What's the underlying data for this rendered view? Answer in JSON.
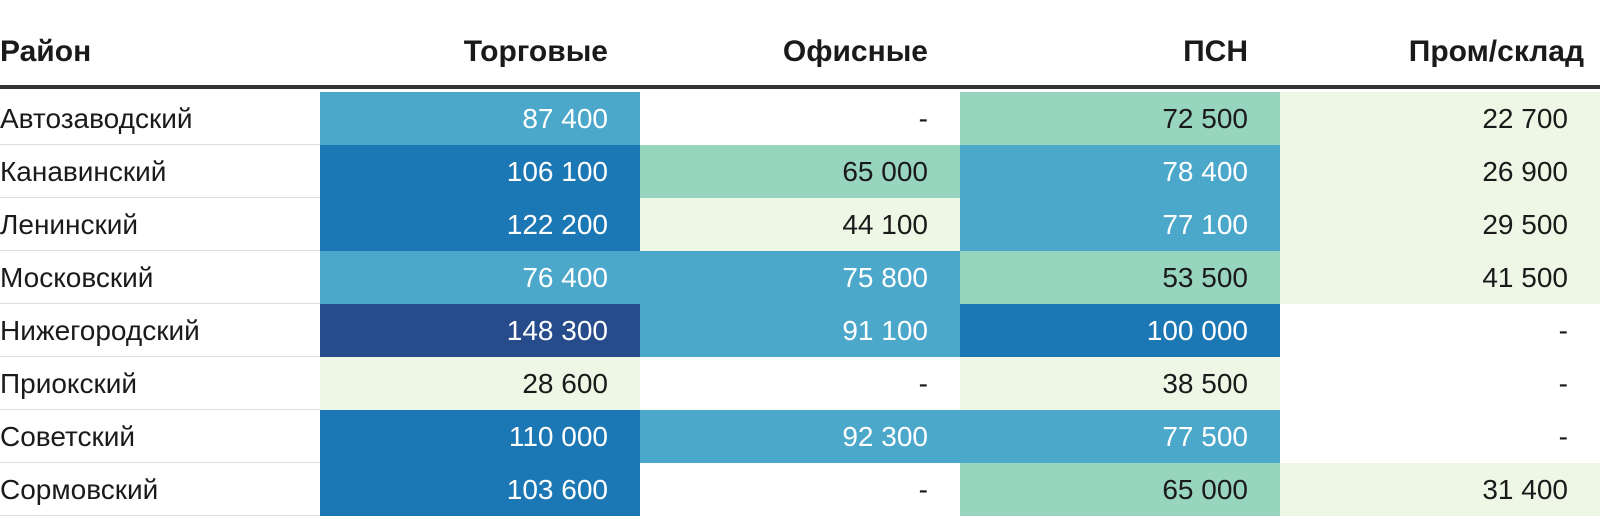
{
  "chart_data": {
    "type": "heatmap",
    "columns": [
      "Район",
      "Торговые",
      "Офисные",
      "ПСН",
      "Пром/склад"
    ],
    "rows": [
      {
        "name": "Автозаводский",
        "values": [
          "87 400",
          "-",
          "72 500",
          "22 700"
        ]
      },
      {
        "name": "Канавинский",
        "values": [
          "106 100",
          "65 000",
          "78 400",
          "26 900"
        ]
      },
      {
        "name": "Ленинский",
        "values": [
          "122 200",
          "44 100",
          "77 100",
          "29 500"
        ]
      },
      {
        "name": "Московский",
        "values": [
          "76 400",
          "75 800",
          "53 500",
          "41 500"
        ]
      },
      {
        "name": "Нижегородский",
        "values": [
          "148 300",
          "91 100",
          "100 000",
          "-"
        ]
      },
      {
        "name": "Приокский",
        "values": [
          "28 600",
          "-",
          "38 500",
          "-"
        ]
      },
      {
        "name": "Советский",
        "values": [
          "110 000",
          "92 300",
          "77 500",
          "-"
        ]
      },
      {
        "name": "Сормовский",
        "values": [
          "103 600",
          "-",
          "65 000",
          "31 400"
        ]
      }
    ],
    "color_scale": {
      "empty": "#ffffff",
      "stops": [
        {
          "max": 50000,
          "color": "#eef7e6",
          "text": "#1a1a1a"
        },
        {
          "max": 75000,
          "color": "#98d5be",
          "text": "#1a1a1a"
        },
        {
          "max": 95000,
          "color": "#4ba8cb",
          "text": "#ffffff"
        },
        {
          "max": 125000,
          "color": "#1c77b5",
          "text": "#ffffff"
        },
        {
          "max": 1000000,
          "color": "#264c8b",
          "text": "#ffffff"
        }
      ]
    }
  }
}
